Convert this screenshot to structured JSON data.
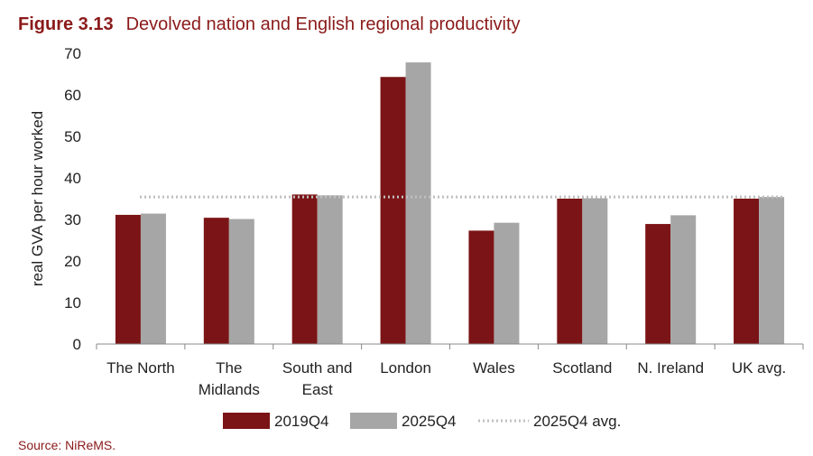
{
  "figure": {
    "label": "Figure 3.13",
    "title": "Devolved nation and English regional productivity",
    "source": "Source: NiReMS."
  },
  "colors": {
    "series_2019": "#7b1416",
    "series_2025": "#a6a6a6",
    "avg_line": "#bfbfbf",
    "title": "#8b1a1a"
  },
  "chart_data": {
    "type": "bar",
    "categories": [
      [
        "The North"
      ],
      [
        "The",
        "Midlands"
      ],
      [
        "South and",
        "East"
      ],
      [
        "London"
      ],
      [
        "Wales"
      ],
      [
        "Scotland"
      ],
      [
        "N. Ireland"
      ],
      [
        "UK avg."
      ]
    ],
    "series": [
      {
        "name": "2019Q4",
        "values": [
          31.1,
          30.4,
          36.0,
          64.3,
          27.3,
          35.0,
          28.9,
          35.0
        ]
      },
      {
        "name": "2025Q4",
        "values": [
          31.4,
          30.1,
          35.8,
          67.8,
          29.2,
          35.1,
          31.0,
          35.4
        ]
      }
    ],
    "reference_line": {
      "name": "2025Q4 avg.",
      "value": 35.4,
      "style": "dotted"
    },
    "ylabel": "real GVA per hour worked",
    "xlabel": "",
    "ylim": [
      0,
      70
    ],
    "yticks": [
      0,
      10,
      20,
      30,
      40,
      50,
      60,
      70
    ],
    "legend_placement": "bottom",
    "grid": false
  }
}
